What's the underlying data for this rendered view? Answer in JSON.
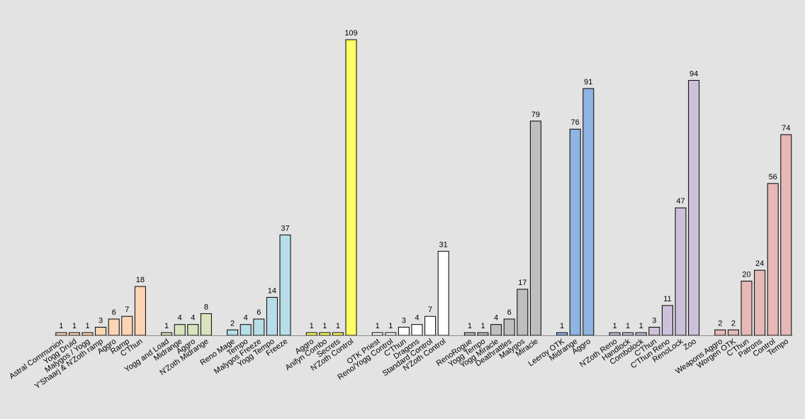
{
  "chart_data": {
    "type": "bar",
    "title": "",
    "xlabel": "",
    "ylabel": "",
    "ylim": [
      0,
      109
    ],
    "grid": false,
    "legend": "none",
    "groups": [
      {
        "color": "#fcd5b4",
        "categories": [
          "Astral Communion",
          "Yogg Druid",
          "Malygos / Yogg",
          "Y'Shaarj & N'Zoth ramp",
          "Aggro",
          "Ramp",
          "C'Thun"
        ],
        "values": [
          1,
          1,
          1,
          3,
          6,
          7,
          18
        ]
      },
      {
        "color": "#d8e4bc",
        "categories": [
          "Yogg and Load",
          "Midrange",
          "Aggro",
          "N'Zoth Midrange"
        ],
        "values": [
          1,
          4,
          4,
          8
        ]
      },
      {
        "color": "#b7dee8",
        "categories": [
          "Reno Mage",
          "Tempo",
          "Malygos Freeze",
          "Yogg Tempo",
          "Freeze"
        ],
        "values": [
          2,
          4,
          6,
          14,
          37
        ]
      },
      {
        "color": "#ffff66",
        "categories": [
          "Aggro",
          "Anifyn Combo",
          "Secrets",
          "N'Zoth Control"
        ],
        "values": [
          1,
          1,
          1,
          109
        ]
      },
      {
        "color": "#ffffff",
        "categories": [
          "OTK Priest",
          "Reno/Yogg Control",
          "C'Thun",
          "Dragons",
          "Standard Control",
          "N'Zoth Control"
        ],
        "values": [
          1,
          1,
          3,
          4,
          7,
          31
        ]
      },
      {
        "color": "#bfbfbf",
        "categories": [
          "RenoRogue",
          "Yogg Tempo",
          "Yogg Miracle",
          "Deathrattles",
          "Malygos",
          "Miracle"
        ],
        "values": [
          1,
          1,
          4,
          6,
          17,
          79
        ]
      },
      {
        "color": "#8eb4e3",
        "categories": [
          "Leeroy OTK",
          "Midrange",
          "Aggro"
        ],
        "values": [
          1,
          76,
          91
        ]
      },
      {
        "color": "#ccc0da",
        "categories": [
          "N'Zoth Reno",
          "Handlock",
          "Combolock",
          "C'Thun",
          "C'Thun Reno",
          "RenoLock",
          "Zoo"
        ],
        "values": [
          1,
          1,
          1,
          3,
          11,
          47,
          94
        ]
      },
      {
        "color": "#e6b9b8",
        "categories": [
          "Weapons Aggro",
          "Worgen OTK",
          "C'Thun",
          "Patrons",
          "Control",
          "Tempo"
        ],
        "values": [
          2,
          2,
          20,
          24,
          56,
          74
        ]
      }
    ]
  }
}
